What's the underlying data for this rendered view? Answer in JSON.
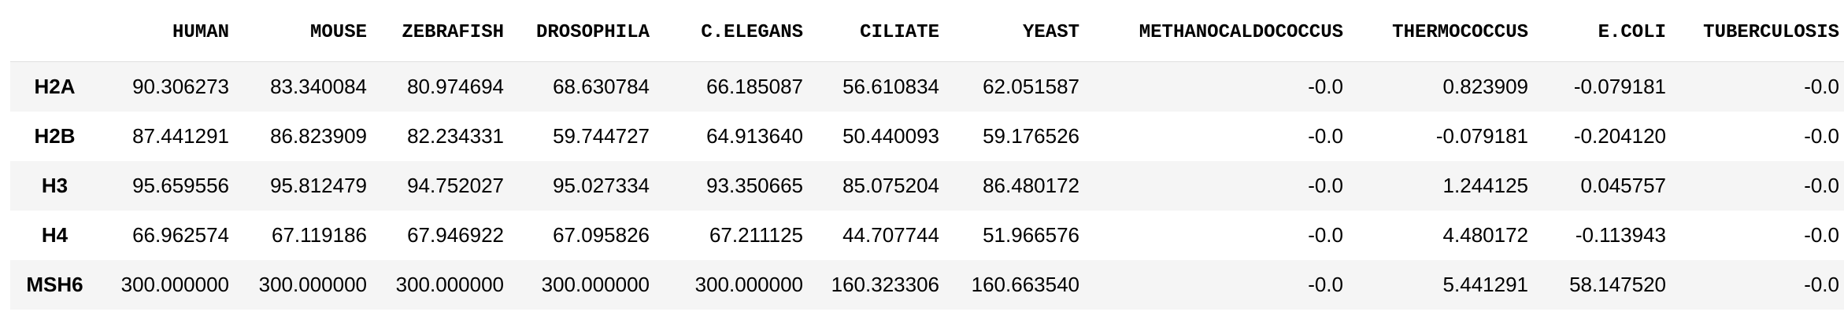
{
  "table": {
    "columns": [
      "HUMAN",
      "MOUSE",
      "ZEBRAFISH",
      "DROSOPHILA",
      "C.ELEGANS",
      "CILIATE",
      "YEAST",
      "METHANOCALDOCOCCUS",
      "THERMOCOCCUS",
      "E.COLI",
      "TUBERCULOSIS"
    ],
    "rows": [
      {
        "label": "H2A",
        "values": [
          "90.306273",
          "83.340084",
          "80.974694",
          "68.630784",
          "66.185087",
          "56.610834",
          "62.051587",
          "-0.0",
          "0.823909",
          "-0.079181",
          "-0.0"
        ]
      },
      {
        "label": "H2B",
        "values": [
          "87.441291",
          "86.823909",
          "82.234331",
          "59.744727",
          "64.913640",
          "50.440093",
          "59.176526",
          "-0.0",
          "-0.079181",
          "-0.204120",
          "-0.0"
        ]
      },
      {
        "label": "H3",
        "values": [
          "95.659556",
          "95.812479",
          "94.752027",
          "95.027334",
          "93.350665",
          "85.075204",
          "86.480172",
          "-0.0",
          "1.244125",
          "0.045757",
          "-0.0"
        ]
      },
      {
        "label": "H4",
        "values": [
          "66.962574",
          "67.119186",
          "67.946922",
          "67.095826",
          "67.211125",
          "44.707744",
          "51.966576",
          "-0.0",
          "4.480172",
          "-0.113943",
          "-0.0"
        ]
      },
      {
        "label": "MSH6",
        "values": [
          "300.000000",
          "300.000000",
          "300.000000",
          "300.000000",
          "300.000000",
          "160.323306",
          "160.663540",
          "-0.0",
          "5.441291",
          "58.147520",
          "-0.0"
        ]
      }
    ]
  }
}
